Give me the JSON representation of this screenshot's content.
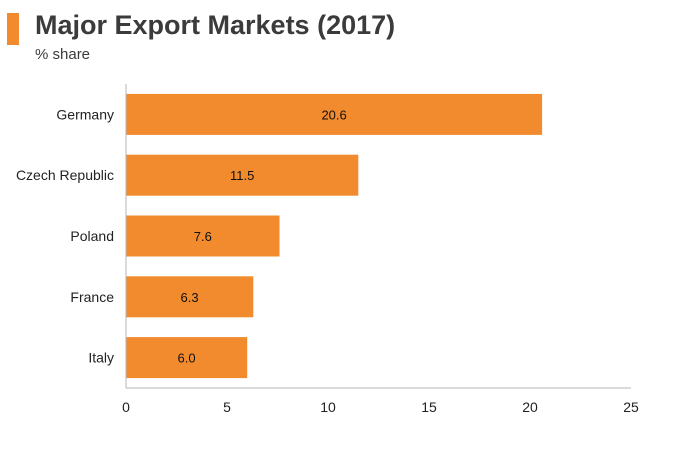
{
  "header": {
    "accent_color": "#f28b2d"
  },
  "chart_data": {
    "type": "bar",
    "orientation": "horizontal",
    "title": "Major Export Markets (2017)",
    "subtitle": "% share",
    "categories": [
      "Germany",
      "Czech Republic",
      "Poland",
      "France",
      "Italy"
    ],
    "values": [
      20.6,
      11.5,
      7.6,
      6.3,
      6.0
    ],
    "value_labels": [
      "20.6",
      "11.5",
      "7.6",
      "6.3",
      "6.0"
    ],
    "xlim": [
      0,
      25
    ],
    "xticks": [
      "0",
      "5",
      "10",
      "15",
      "20",
      "25"
    ],
    "xlabel": "",
    "ylabel": "",
    "grid": false,
    "bar_color": "#f28b2d",
    "axis_color": "#b5b5b5"
  }
}
